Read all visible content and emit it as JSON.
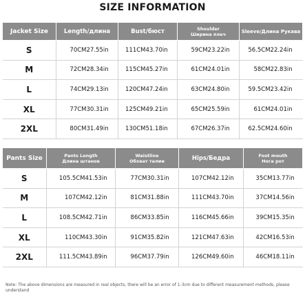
{
  "title": "SIZE INFORMATION",
  "jacket": {
    "headers": [
      "Jacket Size",
      "Length/длина",
      "Bust/бюст",
      "Shoulder\nШирина плеч",
      "Sleeve/Длина Рукава"
    ],
    "rows": [
      {
        "size": "S",
        "length_cm": "70CM",
        "length_in": "27.55in",
        "bust_cm": "111CM",
        "bust_in": "43.70in",
        "shoulder_cm": "59CM",
        "shoulder_in": "23.22in",
        "sleeve_cm": "56.5CM",
        "sleeve_in": "22.24in"
      },
      {
        "size": "M",
        "length_cm": "72CM",
        "length_in": "28.34in",
        "bust_cm": "115CM",
        "bust_in": "45.27in",
        "shoulder_cm": "61CM",
        "shoulder_in": "24.01in",
        "sleeve_cm": "58CM",
        "sleeve_in": "22.83in"
      },
      {
        "size": "L",
        "length_cm": "74CM",
        "length_in": "29.13in",
        "bust_cm": "120CM",
        "bust_in": "47.24in",
        "shoulder_cm": "63CM",
        "shoulder_in": "24.80in",
        "sleeve_cm": "59.5CM",
        "sleeve_in": "23.42in"
      },
      {
        "size": "XL",
        "length_cm": "77CM",
        "length_in": "30.31in",
        "bust_cm": "125CM",
        "bust_in": "49.21in",
        "shoulder_cm": "65CM",
        "shoulder_in": "25.59in",
        "sleeve_cm": "61CM",
        "sleeve_in": "24.01in"
      },
      {
        "size": "2XL",
        "length_cm": "80CM",
        "length_in": "31.49in",
        "bust_cm": "130CM",
        "bust_in": "51.18in",
        "shoulder_cm": "67CM",
        "shoulder_in": "26.37in",
        "sleeve_cm": "62.5CM",
        "sleeve_in": "24.60in"
      }
    ]
  },
  "pants": {
    "headers": [
      "Pants Size",
      "Pants Length\nДлина штанов",
      "Waistline\nОбхват талии",
      "Hips/Бедра",
      "Foot mouth\nНога рот"
    ],
    "rows": [
      {
        "size": "S",
        "length_cm": "105.5CM",
        "length_in": "41.53in",
        "waist_cm": "77CM",
        "waist_in": "30.31in",
        "hips_cm": "107CM",
        "hips_in": "42.12in",
        "foot_cm": "35CM",
        "foot_in": "13.77in"
      },
      {
        "size": "M",
        "length_cm": "107CM",
        "length_in": "42.12in",
        "waist_cm": "81CM",
        "waist_in": "31.88in",
        "hips_cm": "111CM",
        "hips_in": "43.70in",
        "foot_cm": "37CM",
        "foot_in": "14.56in"
      },
      {
        "size": "L",
        "length_cm": "108.5CM",
        "length_in": "42.71in",
        "waist_cm": "86CM",
        "waist_in": "33.85in",
        "hips_cm": "116CM",
        "hips_in": "45.66in",
        "foot_cm": "39CM",
        "foot_in": "15.35in"
      },
      {
        "size": "XL",
        "length_cm": "110CM",
        "length_in": "43.30in",
        "waist_cm": "91CM",
        "waist_in": "35.82in",
        "hips_cm": "121CM",
        "hips_in": "47.63in",
        "foot_cm": "42CM",
        "foot_in": "16.53in"
      },
      {
        "size": "2XL",
        "length_cm": "111.5CM",
        "length_in": "43.89in",
        "waist_cm": "96CM",
        "waist_in": "37.79in",
        "hips_cm": "126CM",
        "hips_in": "49.60in",
        "foot_cm": "46CM",
        "foot_in": "18.11in"
      }
    ]
  },
  "note": "Note: The above dimensions are measured in real objects, there will be an error of 1-3cm due to different measurement methods, please understand"
}
